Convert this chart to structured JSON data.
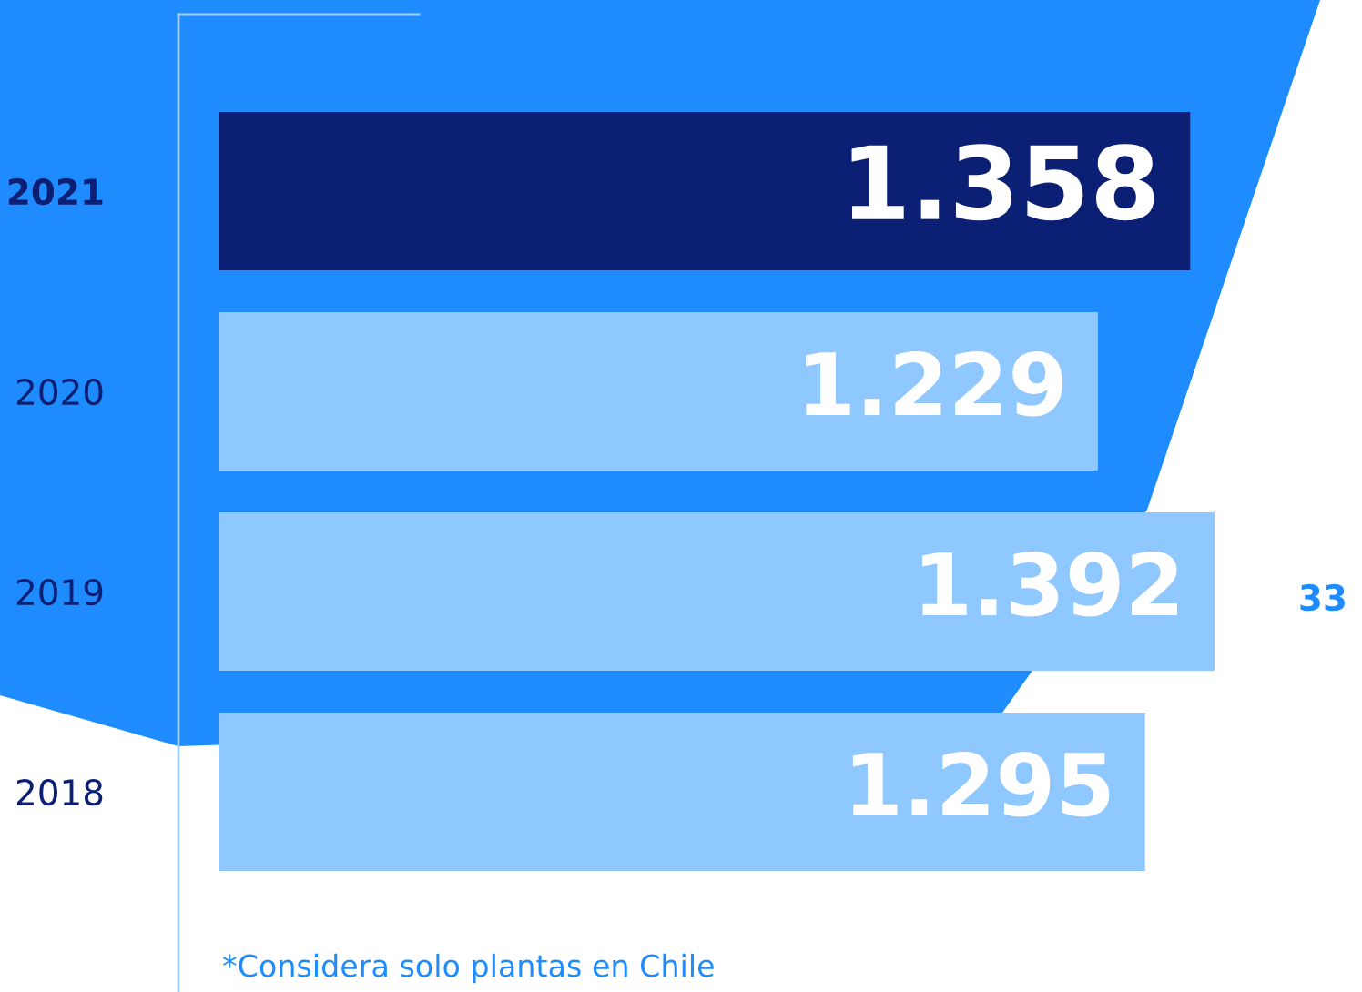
{
  "chart_data": {
    "type": "bar",
    "orientation": "horizontal",
    "categories": [
      "2021",
      "2020",
      "2019",
      "2018"
    ],
    "values": [
      1358,
      1229,
      1392,
      1295
    ],
    "colors": [
      "#0b1f74",
      "#8fc8ff",
      "#8fc8ff",
      "#8fc8ff"
    ],
    "value_labels": [
      "1.358",
      "1.229",
      "1.392",
      "1.295"
    ],
    "tick_labels": "y",
    "grid": false,
    "annotations": [
      "*Considera solo plantas en Chile",
      "33"
    ]
  }
}
